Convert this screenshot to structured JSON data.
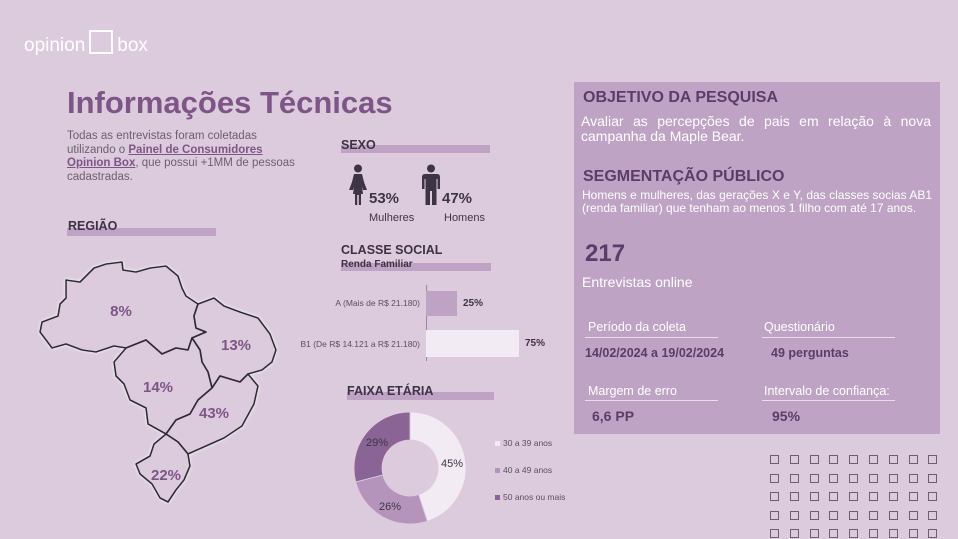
{
  "logo": {
    "left": "opinion",
    "right": "box"
  },
  "title": "Informações Técnicas",
  "intro": {
    "before": "Todas as entrevistas foram coletadas utilizando o ",
    "link": "Painel de Consumidores Opinion Box",
    "after": ", que possui +1MM de pessoas cadastradas."
  },
  "region": {
    "label": "REGIÃO",
    "values": {
      "north": "8%",
      "northeast": "13%",
      "centerwest": "14%",
      "southeast": "43%",
      "south": "22%"
    }
  },
  "sex": {
    "label": "SEXO",
    "women": {
      "pct": "53%",
      "label": "Mulheres"
    },
    "men": {
      "pct": "47%",
      "label": "Homens"
    }
  },
  "social_class": {
    "label": "CLASSE SOCIAL",
    "sublabel": "Renda Familiar",
    "rows": [
      {
        "label": "A (Mais de R$ 21.180)",
        "pct": "25%",
        "value": 25
      },
      {
        "label": "B1 (De R$ 14.121 a R$ 21.180)",
        "pct": "75%",
        "value": 75
      }
    ]
  },
  "age": {
    "label": "FAIXA ETÁRIA",
    "slices": [
      {
        "label": "30 a 39 anos",
        "pct": "45%",
        "value": 45,
        "color": "#f3ebf3"
      },
      {
        "label": "40 a 49 anos",
        "pct": "26%",
        "value": 26,
        "color": "#b594bc"
      },
      {
        "label": "50 anos ou mais",
        "pct": "29%",
        "value": 29,
        "color": "#8a6494"
      }
    ]
  },
  "panel": {
    "objective_title": "OBJETIVO DA PESQUISA",
    "objective_text": "Avaliar as percepções de pais em relação à nova campanha da Maple Bear.",
    "segment_title": "SEGMENTAÇÃO PÚBLICO",
    "segment_text": "Homens e mulheres, das gerações X e Y, das classes socias AB1 (renda familiar) que tenham ao menos 1 filho com até 17 anos.",
    "interviews_count": "217",
    "interviews_label": "Entrevistas online",
    "period_label": "Período da coleta",
    "period_value": "14/02/2024 a 19/02/2024",
    "questionnaire_label": "Questionário",
    "questionnaire_value": "49 perguntas",
    "margin_label": "Margem de erro",
    "margin_value": "6,6 PP",
    "confidence_label": "Intervalo de confiança:",
    "confidence_value": "95%"
  },
  "colors": {
    "background": "#dccbdc",
    "accent": "#7d5587",
    "panel": "#bfa3c5"
  }
}
